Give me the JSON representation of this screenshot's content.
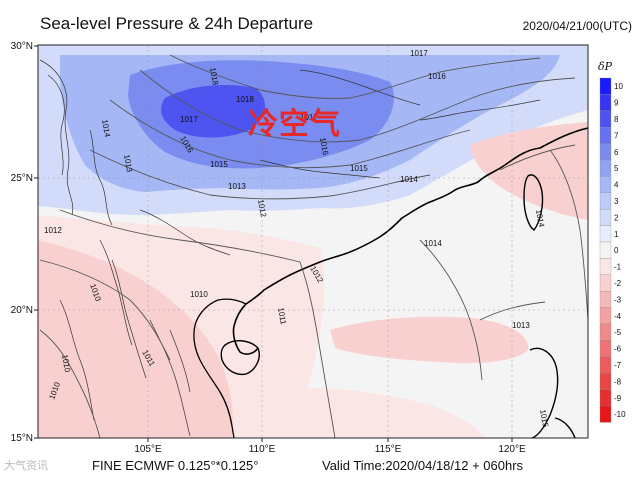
{
  "header": {
    "title": "Sea-level Pressure & 24h Departure",
    "timestamp": "2020/04/21/00(UTC)"
  },
  "annotation": "冷空气",
  "axes": {
    "lat_ticks": [
      "30°N",
      "25°N",
      "20°N",
      "15°N"
    ],
    "lon_ticks": [
      "105°E",
      "110°E",
      "115°E",
      "120°E"
    ]
  },
  "colorbar": {
    "unit": "δP",
    "levels": [
      "10",
      "9",
      "8",
      "7",
      "6",
      "5",
      "4",
      "3",
      "2",
      "1",
      "0",
      "-1",
      "-2",
      "-3",
      "-4",
      "-5",
      "-6",
      "-7",
      "-8",
      "-9",
      "-10"
    ],
    "colors": [
      "#1a1aff",
      "#3636f2",
      "#4d54f0",
      "#6673f0",
      "#7a8cf0",
      "#8fa3f2",
      "#a6b7f5",
      "#bccbf7",
      "#d2dcfa",
      "#e7edfc",
      "#f4f4f4",
      "#fbe6e6",
      "#f9d0d0",
      "#f6b9b9",
      "#f3a1a1",
      "#f08a8a",
      "#ee7373",
      "#eb5c5c",
      "#e94646",
      "#e62f2f",
      "#e41818"
    ]
  },
  "isobars": [
    "1018",
    "1018",
    "1017",
    "1017",
    "1017",
    "1016",
    "1016",
    "1016",
    "1015",
    "1015",
    "1014",
    "1014",
    "1014",
    "1013",
    "1013",
    "1013",
    "1012",
    "1012",
    "1012",
    "1011",
    "1011",
    "1010",
    "1010",
    "1010",
    "1010",
    "1014",
    "1015"
  ],
  "footer": {
    "brand": "大气资讯",
    "model": "FINE ECMWF 0.125°*0.125°",
    "valid": "Valid Time:2020/04/18/12 + 060hrs"
  }
}
